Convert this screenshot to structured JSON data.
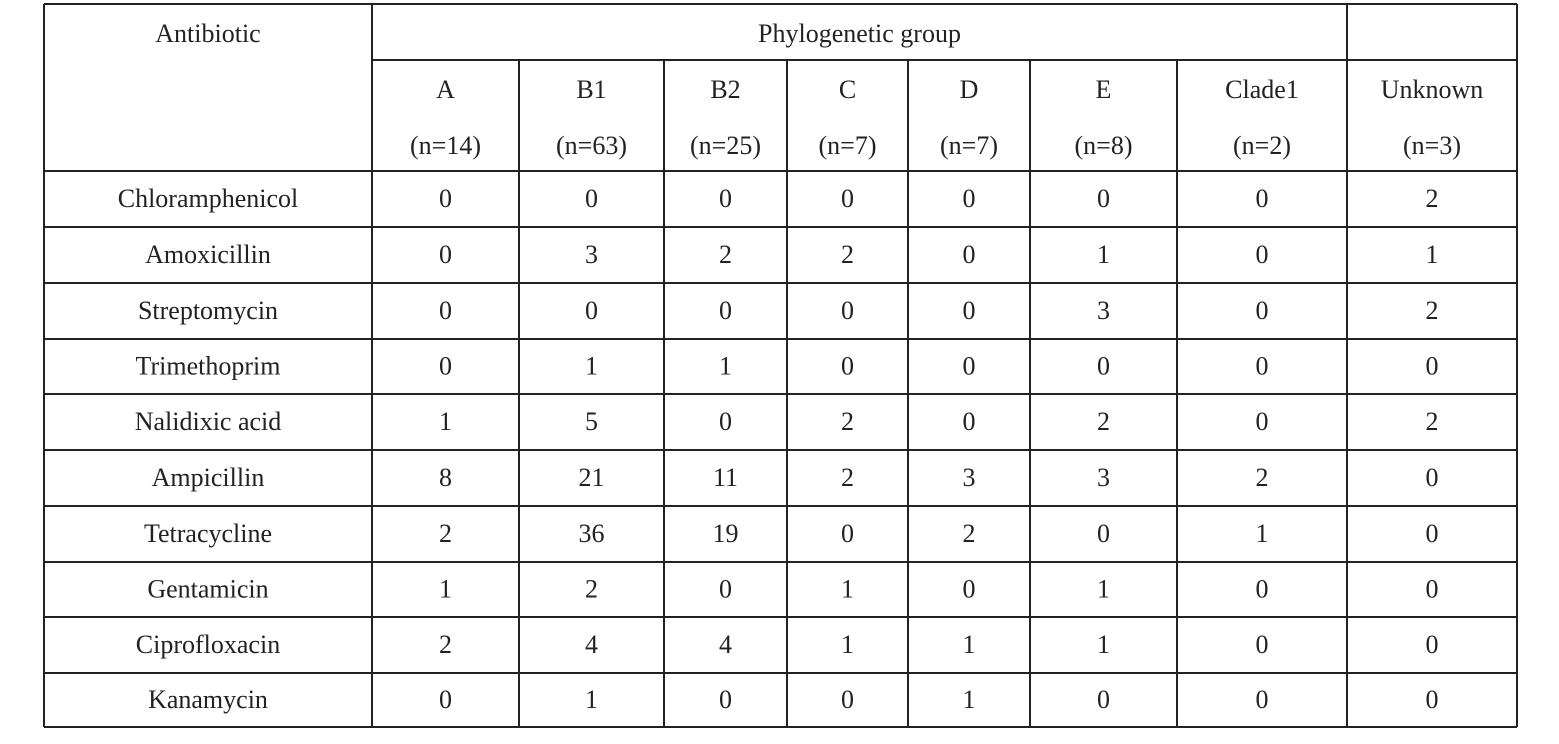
{
  "table": {
    "header": {
      "antibiotic": "Antibiotic",
      "group": "Phylogenetic group"
    },
    "columns": [
      {
        "name": "A",
        "n": "(n=14)"
      },
      {
        "name": "B1",
        "n": "(n=63)"
      },
      {
        "name": "B2",
        "n": "(n=25)"
      },
      {
        "name": "C",
        "n": "(n=7)"
      },
      {
        "name": "D",
        "n": "(n=7)"
      },
      {
        "name": "E",
        "n": "(n=8)"
      },
      {
        "name": "Clade1",
        "n": "(n=2)"
      },
      {
        "name": "Unknown",
        "n": "(n=3)"
      }
    ],
    "rows": [
      {
        "name": "Chloramphenicol",
        "values": [
          0,
          0,
          0,
          0,
          0,
          0,
          0,
          2
        ]
      },
      {
        "name": "Amoxicillin",
        "values": [
          0,
          3,
          2,
          2,
          0,
          1,
          0,
          1
        ]
      },
      {
        "name": "Streptomycin",
        "values": [
          0,
          0,
          0,
          0,
          0,
          3,
          0,
          2
        ]
      },
      {
        "name": "Trimethoprim",
        "values": [
          0,
          1,
          1,
          0,
          0,
          0,
          0,
          0
        ]
      },
      {
        "name": "Nalidixic acid",
        "values": [
          1,
          5,
          0,
          2,
          0,
          2,
          0,
          2
        ]
      },
      {
        "name": "Ampicillin",
        "values": [
          8,
          21,
          11,
          2,
          3,
          3,
          2,
          0
        ]
      },
      {
        "name": "Tetracycline",
        "values": [
          2,
          36,
          19,
          0,
          2,
          0,
          1,
          0
        ]
      },
      {
        "name": "Gentamicin",
        "values": [
          1,
          2,
          0,
          1,
          0,
          1,
          0,
          0
        ]
      },
      {
        "name": "Ciprofloxacin",
        "values": [
          2,
          4,
          4,
          1,
          1,
          1,
          0,
          0
        ]
      },
      {
        "name": "Kanamycin",
        "values": [
          0,
          1,
          0,
          0,
          1,
          0,
          0,
          0
        ]
      }
    ]
  }
}
